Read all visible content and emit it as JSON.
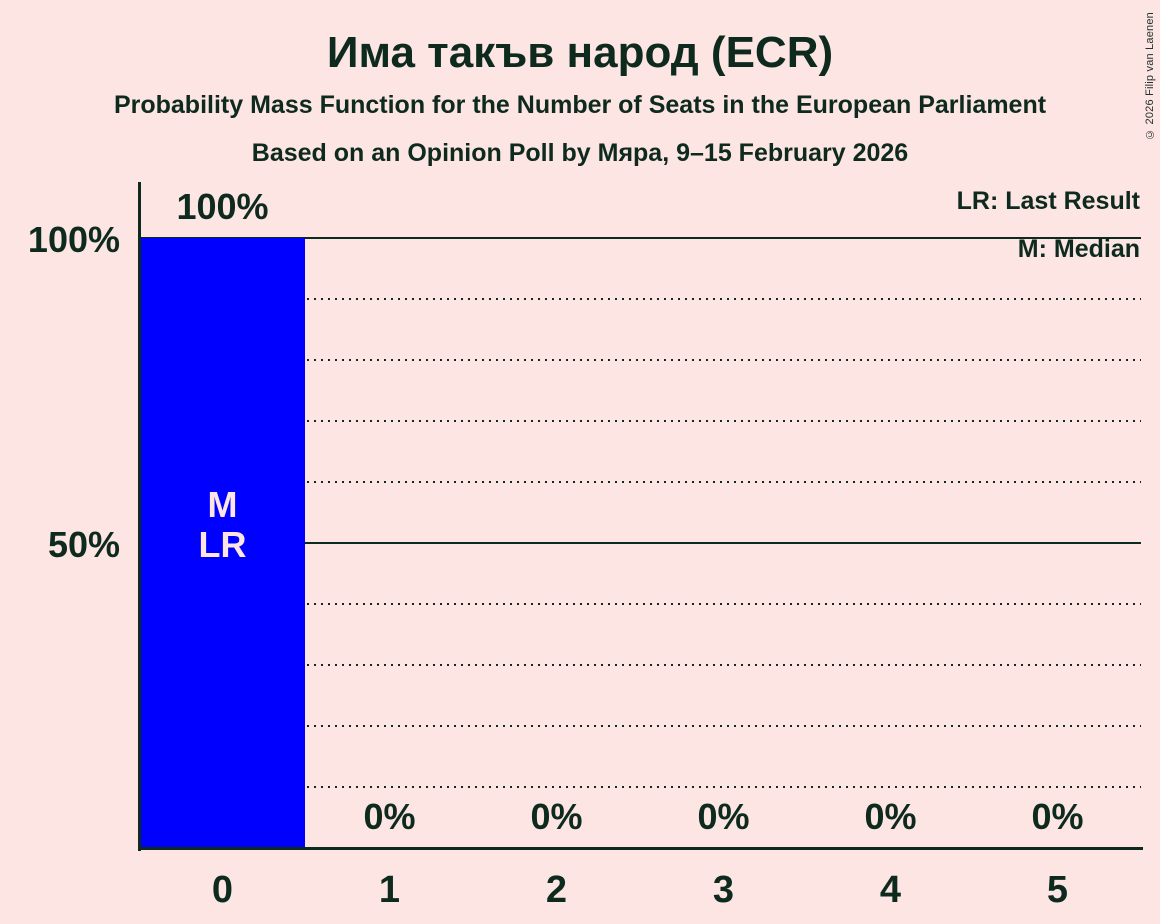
{
  "header": {
    "title": "Има такъв народ (ECR)",
    "subtitle": "Probability Mass Function for the Number of Seats in the European Parliament",
    "poll_line": "Based on an Opinion Poll by Мяра, 9–15 February 2026"
  },
  "legend": {
    "last_result": "LR: Last Result",
    "median": "M: Median"
  },
  "copyright": "© 2026 Filip van Laenen",
  "colors": {
    "background": "#fce5e2",
    "bar": "#0000ff",
    "text": "#0e2a1e",
    "bar_label": "#fce5e2"
  },
  "chart_data": {
    "type": "bar",
    "title": "Има такъв народ (ECR)",
    "categories": [
      "0",
      "1",
      "2",
      "3",
      "4",
      "5"
    ],
    "values": [
      100,
      0,
      0,
      0,
      0,
      0
    ],
    "value_labels": [
      "100%",
      "0%",
      "0%",
      "0%",
      "0%",
      "0%"
    ],
    "ylim": [
      0,
      100
    ],
    "ytick_values": [
      100,
      50
    ],
    "ytick_labels": [
      "100%",
      "50%"
    ],
    "grid": "dotted every 10%, solid at 50% and 100%",
    "legend_position": "top-right",
    "median_seats": 0,
    "last_result_seats": 0,
    "bar_annotations": [
      {
        "category_index": 0,
        "lines": [
          "M",
          "LR"
        ]
      }
    ]
  }
}
